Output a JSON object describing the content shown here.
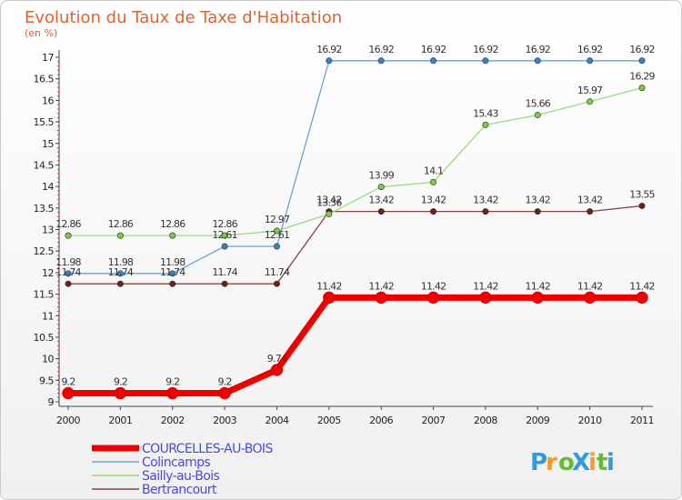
{
  "chart_data": {
    "type": "line",
    "title": "Evolution du Taux de Taxe d'Habitation",
    "unit_label": "(en %)",
    "x": [
      "2000",
      "2001",
      "2002",
      "2003",
      "2004",
      "2005",
      "2006",
      "2007",
      "2008",
      "2009",
      "2010",
      "2011"
    ],
    "ylim": [
      9,
      17
    ],
    "yticks": [
      "9",
      "9.5",
      "10",
      "10.5",
      "11",
      "11.5",
      "12",
      "12.5",
      "13",
      "13.5",
      "14",
      "14.5",
      "15",
      "15.5",
      "16",
      "16.5",
      "17"
    ],
    "grid": false,
    "legend_position": "bottom-left",
    "series": [
      {
        "name": "COURCELLES-AU-BOIS",
        "color": "#ee0000",
        "marker_color": "#ee0000",
        "values": [
          9.2,
          9.2,
          9.2,
          9.2,
          9.74,
          11.42,
          11.42,
          11.42,
          11.42,
          11.42,
          11.42,
          11.42
        ],
        "labels": [
          "9.2",
          "9.2",
          "9.2",
          "9.2",
          "9.74",
          "11.42",
          "11.42",
          "11.42",
          "11.42",
          "11.42",
          "11.42",
          "11.42"
        ]
      },
      {
        "name": "Colincamps",
        "color": "#6fa0d0",
        "marker_color": "#3a82c6",
        "values": [
          11.98,
          11.98,
          11.98,
          12.61,
          12.61,
          16.92,
          16.92,
          16.92,
          16.92,
          16.92,
          16.92,
          16.92
        ],
        "labels": [
          "11.98",
          "11.98",
          "11.98",
          "12.61",
          "12.61",
          "16.92",
          "16.92",
          "16.92",
          "16.92",
          "16.92",
          "16.92",
          "16.92"
        ]
      },
      {
        "name": "Sailly-au-Bois",
        "color": "#99dd77",
        "marker_color": "#77cc44",
        "values": [
          12.86,
          12.86,
          12.86,
          12.86,
          12.97,
          13.36,
          13.99,
          14.1,
          15.43,
          15.66,
          15.97,
          16.29
        ],
        "labels": [
          "12.86",
          "12.86",
          "12.86",
          "12.86",
          "12.97",
          "13.36",
          "13.99",
          "14.1",
          "15.43",
          "15.66",
          "15.97",
          "16.29"
        ]
      },
      {
        "name": "Bertrancourt",
        "color": "#884444",
        "marker_color": "#662222",
        "values": [
          11.74,
          11.74,
          11.74,
          11.74,
          11.74,
          13.42,
          13.42,
          13.42,
          13.42,
          13.42,
          13.42,
          13.55
        ],
        "labels": [
          "11.74",
          "11.74",
          "11.74",
          "11.74",
          "11.74",
          "13.42",
          "13.42",
          "13.42",
          "13.42",
          "13.42",
          "13.42",
          "13.55"
        ]
      }
    ],
    "logo": {
      "text": "ProXiti",
      "letters": [
        "P",
        "r",
        "o",
        "X",
        "i",
        "t",
        "i"
      ],
      "colors": [
        "#3399dd",
        "#ff9922",
        "#66bb33",
        "#3399dd",
        "#ff9922",
        "#66bb33",
        "#3399dd"
      ]
    }
  }
}
